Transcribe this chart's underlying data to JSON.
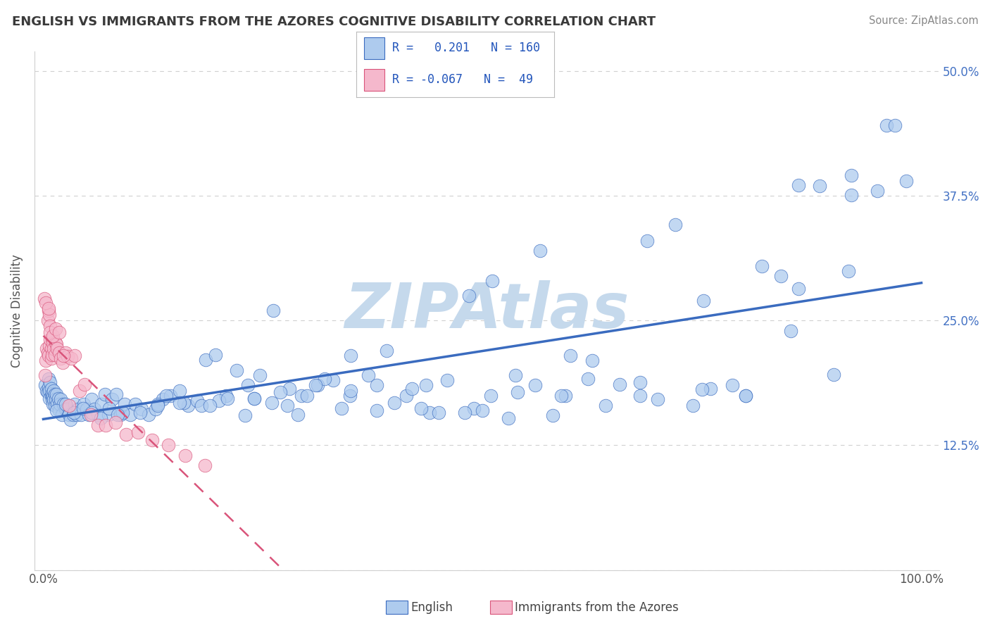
{
  "title": "ENGLISH VS IMMIGRANTS FROM THE AZORES COGNITIVE DISABILITY CORRELATION CHART",
  "source": "Source: ZipAtlas.com",
  "ylabel": "Cognitive Disability",
  "xlim": [
    -0.01,
    1.02
  ],
  "ylim": [
    0.0,
    0.52
  ],
  "english_R": 0.201,
  "english_N": 160,
  "azores_R": -0.067,
  "azores_N": 49,
  "english_color": "#aecbee",
  "azores_color": "#f5b8cc",
  "english_line_color": "#3a6bbf",
  "azores_line_color": "#d9547a",
  "legend_R_color": "#2255bb",
  "background_color": "#ffffff",
  "watermark_color": "#c5d9ec",
  "grid_color": "#d0d0d0",
  "title_color": "#3a3a3a",
  "right_tick_color": "#4472c4",
  "english_x": [
    0.002,
    0.004,
    0.005,
    0.006,
    0.006,
    0.007,
    0.007,
    0.008,
    0.009,
    0.009,
    0.01,
    0.01,
    0.011,
    0.011,
    0.012,
    0.012,
    0.013,
    0.013,
    0.014,
    0.015,
    0.016,
    0.017,
    0.018,
    0.019,
    0.02,
    0.021,
    0.023,
    0.025,
    0.027,
    0.029,
    0.031,
    0.034,
    0.036,
    0.038,
    0.04,
    0.043,
    0.046,
    0.049,
    0.052,
    0.055,
    0.058,
    0.062,
    0.066,
    0.07,
    0.074,
    0.078,
    0.083,
    0.088,
    0.093,
    0.099,
    0.105,
    0.112,
    0.12,
    0.128,
    0.136,
    0.145,
    0.155,
    0.165,
    0.175,
    0.185,
    0.196,
    0.208,
    0.22,
    0.233,
    0.247,
    0.262,
    0.278,
    0.294,
    0.312,
    0.33,
    0.349,
    0.37,
    0.391,
    0.413,
    0.436,
    0.46,
    0.485,
    0.511,
    0.538,
    0.566,
    0.595,
    0.625,
    0.656,
    0.688,
    0.72,
    0.752,
    0.785,
    0.818,
    0.851,
    0.884,
    0.917,
    0.95,
    0.983,
    0.35,
    0.42,
    0.29,
    0.51,
    0.6,
    0.68,
    0.76,
    0.84,
    0.92,
    0.13,
    0.16,
    0.2,
    0.24,
    0.28,
    0.32,
    0.38,
    0.44,
    0.49,
    0.54,
    0.59,
    0.64,
    0.7,
    0.75,
    0.8,
    0.86,
    0.9,
    0.96,
    0.015,
    0.025,
    0.035,
    0.045,
    0.055,
    0.065,
    0.075,
    0.09,
    0.11,
    0.13,
    0.155,
    0.18,
    0.21,
    0.24,
    0.27,
    0.31,
    0.35,
    0.4,
    0.45,
    0.5,
    0.56,
    0.62,
    0.68,
    0.74,
    0.8,
    0.86,
    0.92,
    0.97,
    0.085,
    0.14,
    0.19,
    0.23,
    0.26,
    0.3,
    0.34,
    0.38,
    0.43,
    0.48,
    0.53,
    0.58
  ],
  "english_y": [
    0.185,
    0.18,
    0.178,
    0.192,
    0.183,
    0.18,
    0.172,
    0.188,
    0.175,
    0.182,
    0.171,
    0.177,
    0.174,
    0.166,
    0.18,
    0.171,
    0.176,
    0.165,
    0.171,
    0.176,
    0.166,
    0.172,
    0.16,
    0.166,
    0.171,
    0.156,
    0.166,
    0.161,
    0.161,
    0.156,
    0.151,
    0.156,
    0.166,
    0.156,
    0.161,
    0.156,
    0.166,
    0.161,
    0.156,
    0.171,
    0.161,
    0.156,
    0.166,
    0.176,
    0.156,
    0.171,
    0.176,
    0.156,
    0.166,
    0.156,
    0.166,
    0.161,
    0.156,
    0.161,
    0.171,
    0.175,
    0.18,
    0.165,
    0.17,
    0.211,
    0.216,
    0.175,
    0.2,
    0.185,
    0.195,
    0.26,
    0.165,
    0.175,
    0.185,
    0.19,
    0.175,
    0.195,
    0.22,
    0.175,
    0.185,
    0.19,
    0.275,
    0.29,
    0.195,
    0.32,
    0.175,
    0.21,
    0.186,
    0.33,
    0.346,
    0.27,
    0.185,
    0.305,
    0.24,
    0.385,
    0.3,
    0.38,
    0.39,
    0.215,
    0.182,
    0.156,
    0.175,
    0.215,
    0.188,
    0.182,
    0.295,
    0.376,
    0.166,
    0.168,
    0.17,
    0.172,
    0.182,
    0.192,
    0.16,
    0.158,
    0.162,
    0.178,
    0.175,
    0.165,
    0.171,
    0.181,
    0.175,
    0.282,
    0.196,
    0.446,
    0.16,
    0.166,
    0.158,
    0.162,
    0.158,
    0.152,
    0.162,
    0.158,
    0.158,
    0.165,
    0.168,
    0.165,
    0.172,
    0.172,
    0.178,
    0.185,
    0.18,
    0.168,
    0.158,
    0.16,
    0.185,
    0.192,
    0.175,
    0.165,
    0.175,
    0.386,
    0.396,
    0.446,
    0.156,
    0.175,
    0.165,
    0.155,
    0.168,
    0.175,
    0.162,
    0.185,
    0.162,
    0.158,
    0.152,
    0.155
  ],
  "azores_x": [
    0.002,
    0.003,
    0.004,
    0.005,
    0.005,
    0.006,
    0.006,
    0.007,
    0.007,
    0.008,
    0.008,
    0.009,
    0.009,
    0.01,
    0.01,
    0.011,
    0.012,
    0.013,
    0.014,
    0.015,
    0.016,
    0.018,
    0.02,
    0.022,
    0.025,
    0.028,
    0.032,
    0.036,
    0.041,
    0.047,
    0.054,
    0.062,
    0.071,
    0.082,
    0.094,
    0.108,
    0.124,
    0.142,
    0.162,
    0.184,
    0.001,
    0.003,
    0.006,
    0.008,
    0.011,
    0.014,
    0.018,
    0.023,
    0.029
  ],
  "azores_y": [
    0.195,
    0.21,
    0.222,
    0.25,
    0.218,
    0.26,
    0.215,
    0.256,
    0.225,
    0.231,
    0.245,
    0.212,
    0.222,
    0.232,
    0.216,
    0.228,
    0.222,
    0.216,
    0.228,
    0.226,
    0.222,
    0.218,
    0.212,
    0.208,
    0.218,
    0.214,
    0.212,
    0.215,
    0.18,
    0.186,
    0.156,
    0.145,
    0.145,
    0.148,
    0.136,
    0.138,
    0.13,
    0.125,
    0.115,
    0.105,
    0.272,
    0.268,
    0.262,
    0.238,
    0.235,
    0.242,
    0.238,
    0.215,
    0.165
  ]
}
